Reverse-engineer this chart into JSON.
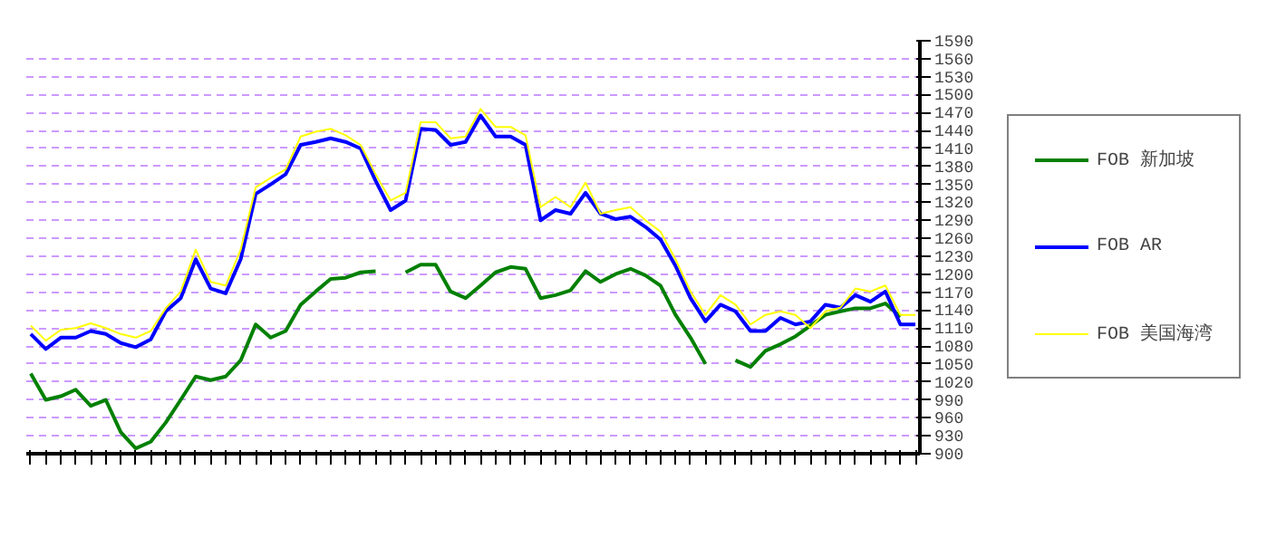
{
  "chart_data": {
    "type": "line",
    "categories": [
      null,
      null,
      null,
      null,
      null,
      null,
      null,
      null,
      null,
      null,
      null,
      null,
      null,
      null,
      null,
      null,
      null,
      null,
      null,
      null,
      null,
      null,
      null,
      null,
      null,
      null,
      null,
      null,
      null,
      null,
      null,
      null,
      null,
      null,
      null,
      null,
      null,
      null,
      null,
      null,
      null,
      null,
      null,
      null,
      null,
      null,
      null,
      null,
      null,
      null,
      null,
      null,
      null,
      null,
      null,
      null,
      null,
      null,
      null,
      null
    ],
    "series": [
      {
        "name": "FOB 新加坡",
        "color": "#008000",
        "values": [
          1034,
          990,
          996,
          1007,
          980,
          990,
          936,
          909,
          920,
          952,
          990,
          1029,
          1023,
          1029,
          1056,
          1116,
          1094,
          1105,
          1149,
          1171,
          1192,
          1194,
          1203,
          1205,
          null,
          1203,
          1216,
          1216,
          1171,
          1160,
          1181,
          1203,
          1212,
          1209,
          1160,
          1165,
          1173,
          1205,
          1187,
          1200,
          1209,
          1198,
          1181,
          1132,
          1094,
          1050,
          null,
          1056,
          1045,
          1072,
          1083,
          1096,
          1114,
          1132,
          1138,
          1143,
          1143,
          1151,
          1129,
          null
        ]
      },
      {
        "name": "FOB AR",
        "color": "#0000ff",
        "values": [
          1100,
          1075,
          1094,
          1094,
          1105,
          1100,
          1085,
          1078,
          1091,
          1138,
          1160,
          1225,
          1176,
          1168,
          1225,
          1334,
          1350,
          1367,
          1416,
          1421,
          1427,
          1421,
          1410,
          1356,
          1307,
          1323,
          1443,
          1441,
          1416,
          1421,
          1465,
          1430,
          1430,
          1416,
          1290,
          1307,
          1301,
          1336,
          1301,
          1292,
          1296,
          1279,
          1258,
          1214,
          1160,
          1121,
          1149,
          1138,
          1105,
          1105,
          1127,
          1116,
          1121,
          1149,
          1144,
          1165,
          1154,
          1171,
          1116,
          1116
        ]
      },
      {
        "name": "FOB 美国海湾",
        "color": "#ffff00",
        "values": [
          1114,
          1089,
          1107,
          1110,
          1118,
          1110,
          1100,
          1094,
          1105,
          1143,
          1171,
          1241,
          1187,
          1181,
          1241,
          1345,
          1361,
          1375,
          1430,
          1438,
          1443,
          1432,
          1416,
          1367,
          1323,
          1336,
          1454,
          1454,
          1427,
          1430,
          1476,
          1446,
          1446,
          1432,
          1312,
          1329,
          1312,
          1353,
          1301,
          1307,
          1312,
          1290,
          1271,
          1225,
          1171,
          1132,
          1165,
          1149,
          1116,
          1132,
          1138,
          1132,
          1110,
          1138,
          1144,
          1176,
          1171,
          1181,
          1132,
          1132
        ]
      }
    ],
    "ylim": [
      900,
      1590
    ],
    "yticks": [
      900,
      930,
      960,
      990,
      1020,
      1050,
      1080,
      1110,
      1140,
      1170,
      1200,
      1230,
      1260,
      1290,
      1320,
      1350,
      1380,
      1410,
      1440,
      1470,
      1500,
      1530,
      1560,
      1590
    ],
    "grid": "y",
    "legend": "right",
    "tick_labels": "y",
    "marker": "none",
    "line_style": "solid"
  }
}
